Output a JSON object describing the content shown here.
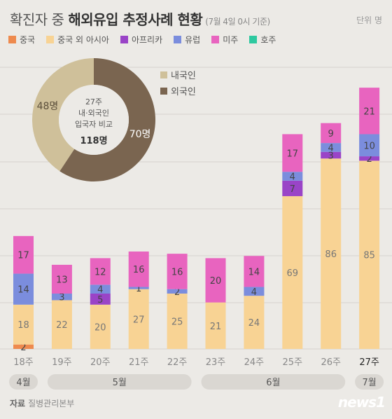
{
  "header": {
    "title_light": "확진자 중 ",
    "title_bold": "해외유입 추정사례 현황",
    "subtitle": "(7월 4일 0시 기준)",
    "unit": "단위 명"
  },
  "legend": [
    {
      "label": "중국",
      "color": "#ee8a4e"
    },
    {
      "label": "중국 외 아시아",
      "color": "#f8d394"
    },
    {
      "label": "아프리카",
      "color": "#9a44c7"
    },
    {
      "label": "유럽",
      "color": "#7b8ddd"
    },
    {
      "label": "미주",
      "color": "#e864bf"
    },
    {
      "label": "호주",
      "color": "#2ec9a0"
    }
  ],
  "chart_data": [
    {
      "type": "bar",
      "stacked": true,
      "categories": [
        "18주",
        "19주",
        "20주",
        "21주",
        "22주",
        "23주",
        "24주",
        "25주",
        "26주",
        "27주"
      ],
      "highlight_category": "27주",
      "series": [
        {
          "name": "중국",
          "values": [
            2,
            0,
            0,
            0,
            0,
            0,
            0,
            0,
            0,
            0
          ]
        },
        {
          "name": "중국 외 아시아",
          "values": [
            18,
            22,
            20,
            27,
            25,
            21,
            24,
            69,
            86,
            85
          ]
        },
        {
          "name": "아프리카",
          "values": [
            0,
            0,
            5,
            0,
            0,
            0,
            0,
            7,
            3,
            2
          ]
        },
        {
          "name": "유럽",
          "values": [
            14,
            3,
            4,
            1,
            2,
            0,
            4,
            4,
            4,
            10
          ]
        },
        {
          "name": "미주",
          "values": [
            17,
            13,
            12,
            16,
            16,
            20,
            14,
            17,
            9,
            21
          ]
        },
        {
          "name": "호주",
          "values": [
            0,
            0,
            0,
            0,
            0,
            0,
            0,
            0,
            0,
            0
          ]
        }
      ],
      "month_groups": [
        {
          "label": "4월",
          "from": 0,
          "to": 0
        },
        {
          "label": "5월",
          "from": 1,
          "to": 4
        },
        {
          "label": "6월",
          "from": 5,
          "to": 8
        },
        {
          "label": "7월",
          "from": 9,
          "to": 9
        }
      ],
      "ylim": [
        0,
        125
      ],
      "grid": true
    },
    {
      "type": "pie",
      "donut": true,
      "labels": [
        "내국인",
        "외국인"
      ],
      "values": [
        48,
        70
      ],
      "value_labels": [
        "48명",
        "70명"
      ],
      "colors": [
        "#cfc09a",
        "#7a6550"
      ],
      "center_text": [
        "27주",
        "내·외국인",
        "입국자 비교"
      ],
      "center_total": "118명"
    }
  ],
  "source": {
    "label": "자료",
    "text": "질병관리본부"
  },
  "logo": "news1"
}
